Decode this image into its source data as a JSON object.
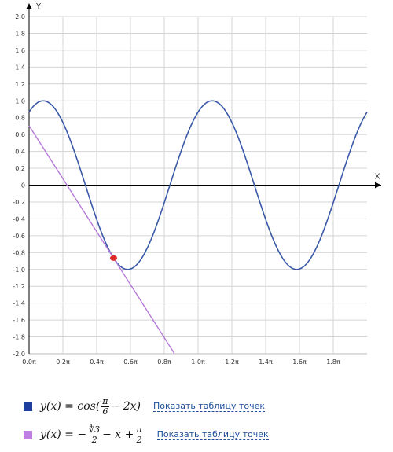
{
  "chart_data": {
    "type": "line",
    "x_axis_label": "X",
    "y_axis_label": "Y",
    "xlim_pi": [
      0,
      2
    ],
    "ylim": [
      -2,
      2
    ],
    "x_ticks": [
      "0.0π",
      "0.2π",
      "0.4π",
      "0.6π",
      "0.8π",
      "1.0π",
      "1.2π",
      "1.4π",
      "1.6π",
      "1.8π"
    ],
    "y_ticks": [
      "2.0",
      "1.8",
      "1.6",
      "1.4",
      "1.2",
      "1.0",
      "0.8",
      "0.6",
      "0.4",
      "0.2",
      "0",
      "-0.2",
      "-0.4",
      "-0.6",
      "-0.8",
      "-1.0",
      "-1.2",
      "-1.4",
      "-1.6",
      "-1.8",
      "-2.0"
    ],
    "grid": true,
    "series": [
      {
        "formula_left": "y(x) = cos(",
        "frac_num": "π",
        "frac_den": "6",
        "formula_right": "− 2x)",
        "color": "#3a5aa8",
        "swatch_color": "#1f3f9f"
      },
      {
        "formula_left": "y(x) = −",
        "frac_num": "∜3",
        "frac_den": "2",
        "formula_mid": "− x +",
        "frac2_num": "π",
        "frac2_den": "2",
        "color": "#b57ad9",
        "swatch_color": "#c07fe0"
      }
    ],
    "highlight_point": {
      "x_pi": 0.5,
      "y": -0.866,
      "color": "#e0282a"
    }
  },
  "legend": {
    "link_label": "Показать таблицу точек"
  }
}
